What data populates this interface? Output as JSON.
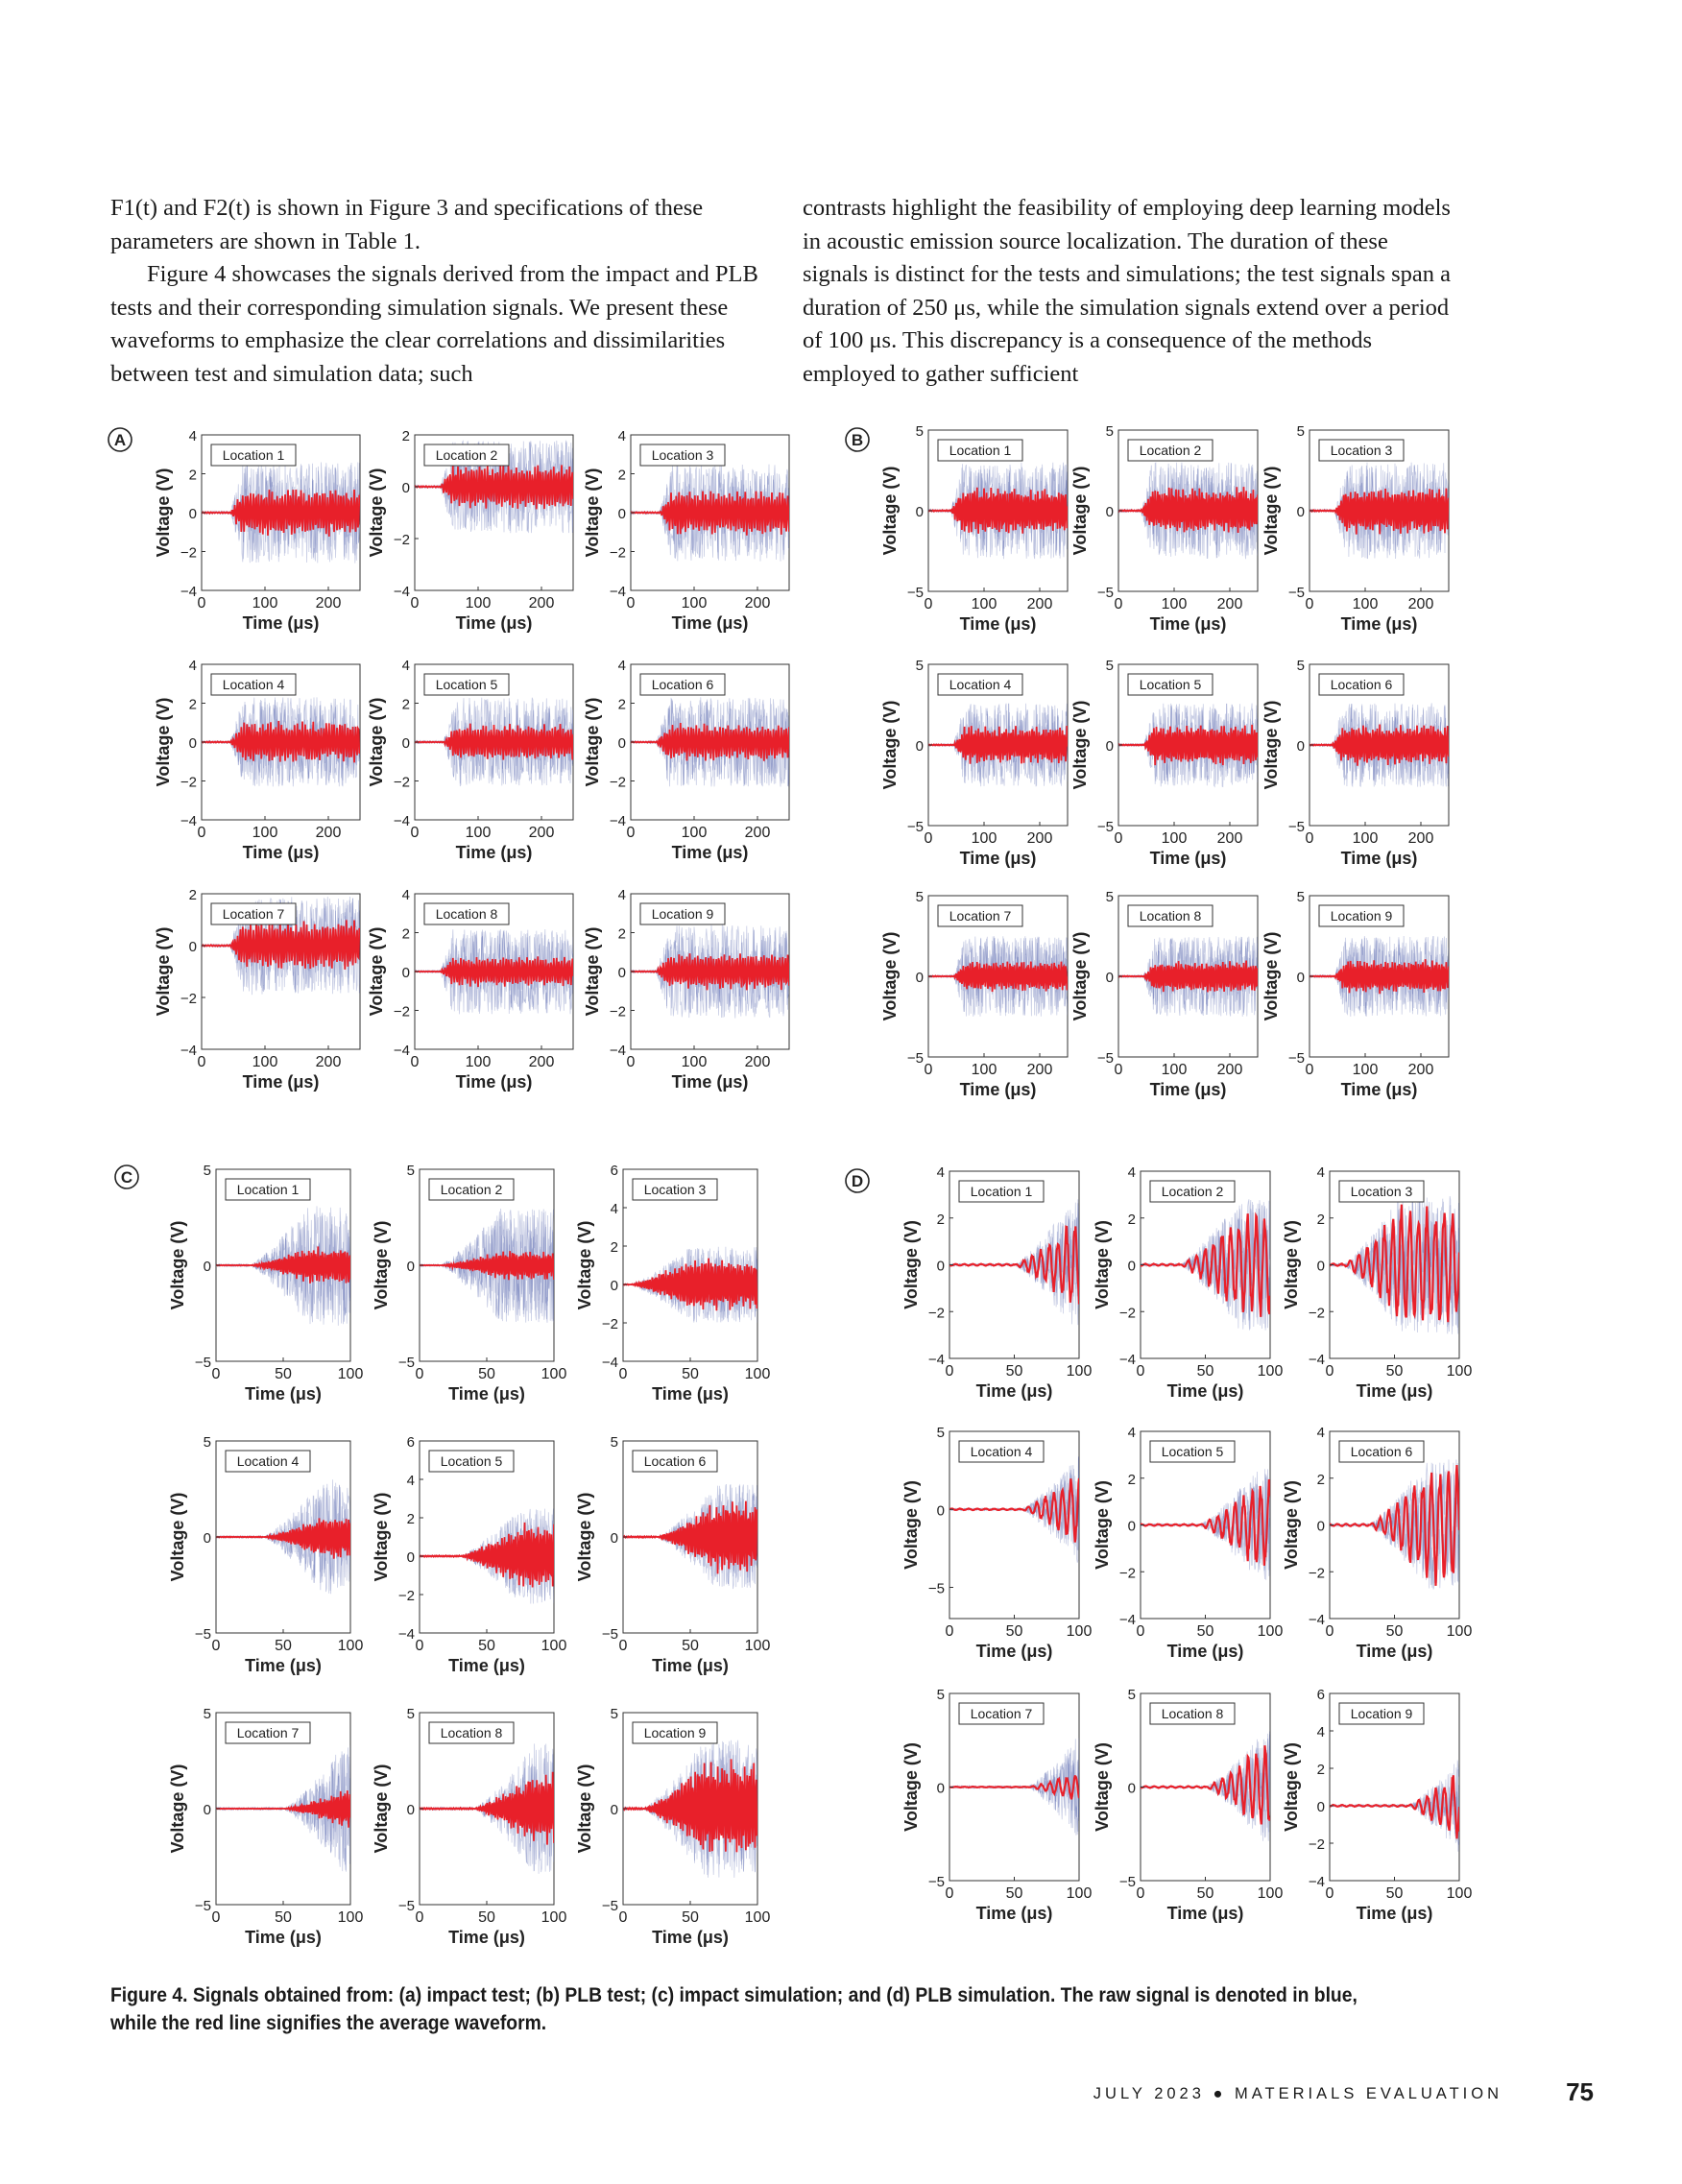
{
  "text_left": [
    "F1(t) and F2(t) is shown in Figure 3 and specifications of these parameters are shown in Table 1.",
    "Figure 4 showcases the signals derived from the impact and PLB tests and their corresponding simulation signals. We present these waveforms to emphasize the clear correlations and dissimilarities between test and simulation data; such"
  ],
  "text_right": [
    "contrasts highlight the feasibility of employing deep learning models in acoustic emission source localization. The duration of these signals is distinct for the tests and simulations; the test signals span a duration of 250 μs, while the simulation signals extend over a period of 100 μs. This discrepancy is a consequence of the methods employed to gather sufficient"
  ],
  "colors": {
    "raw": "#3e4fa0",
    "average": "#e8202a",
    "axis": "#333333"
  },
  "chart_data": [
    {
      "panel": "A",
      "type": "line",
      "series_names": [
        "raw",
        "average"
      ],
      "xlabel": "Time (μs)",
      "ylabel": "Voltage (V)",
      "xlim": [
        0,
        250
      ],
      "xticks": [
        0,
        100,
        200
      ],
      "subplots": [
        {
          "title": "Location 1",
          "ylim": [
            -4,
            4
          ],
          "yticks": [
            -4,
            -2,
            0,
            2,
            4
          ],
          "onset": 45,
          "amp_avg": 1.3,
          "amp_raw": 2.6,
          "seed": 11
        },
        {
          "title": "Location 2",
          "ylim": [
            -4,
            2
          ],
          "yticks": [
            -4,
            -2,
            0,
            2
          ],
          "onset": 40,
          "amp_avg": 0.9,
          "amp_raw": 1.8,
          "seed": 12
        },
        {
          "title": "Location 3",
          "ylim": [
            -4,
            4
          ],
          "yticks": [
            -4,
            -2,
            0,
            2,
            4
          ],
          "onset": 45,
          "amp_avg": 1.2,
          "amp_raw": 2.5,
          "seed": 13
        },
        {
          "title": "Location 4",
          "ylim": [
            -4,
            4
          ],
          "yticks": [
            -4,
            -2,
            0,
            2,
            4
          ],
          "onset": 45,
          "amp_avg": 1.1,
          "amp_raw": 2.3,
          "seed": 14
        },
        {
          "title": "Location 5",
          "ylim": [
            -4,
            4
          ],
          "yticks": [
            -4,
            -2,
            0,
            2,
            4
          ],
          "onset": 45,
          "amp_avg": 1.0,
          "amp_raw": 2.3,
          "seed": 15
        },
        {
          "title": "Location 6",
          "ylim": [
            -4,
            4
          ],
          "yticks": [
            -4,
            -2,
            0,
            2,
            4
          ],
          "onset": 40,
          "amp_avg": 1.0,
          "amp_raw": 2.3,
          "seed": 16
        },
        {
          "title": "Location 7",
          "ylim": [
            -4,
            2
          ],
          "yticks": [
            -4,
            -2,
            0,
            2
          ],
          "onset": 45,
          "amp_avg": 1.0,
          "amp_raw": 1.9,
          "seed": 17
        },
        {
          "title": "Location 8",
          "ylim": [
            -4,
            4
          ],
          "yticks": [
            -4,
            -2,
            0,
            2,
            4
          ],
          "onset": 40,
          "amp_avg": 0.8,
          "amp_raw": 2.2,
          "seed": 18
        },
        {
          "title": "Location 9",
          "ylim": [
            -4,
            4
          ],
          "yticks": [
            -4,
            -2,
            0,
            2,
            4
          ],
          "onset": 40,
          "amp_avg": 1.0,
          "amp_raw": 2.4,
          "seed": 19
        }
      ]
    },
    {
      "panel": "B",
      "type": "line",
      "series_names": [
        "raw",
        "average"
      ],
      "xlabel": "Time (μs)",
      "ylabel": "Voltage (V)",
      "xlim": [
        0,
        250
      ],
      "xticks": [
        0,
        100,
        200
      ],
      "subplots": [
        {
          "title": "Location 1",
          "ylim": [
            -5,
            5
          ],
          "yticks": [
            -5,
            0,
            5
          ],
          "onset": 40,
          "amp_avg": 1.5,
          "amp_raw": 3.0,
          "seed": 21
        },
        {
          "title": "Location 2",
          "ylim": [
            -5,
            5
          ],
          "yticks": [
            -5,
            0,
            5
          ],
          "onset": 40,
          "amp_avg": 1.5,
          "amp_raw": 3.0,
          "seed": 22
        },
        {
          "title": "Location 3",
          "ylim": [
            -5,
            5
          ],
          "yticks": [
            -5,
            0,
            5
          ],
          "onset": 45,
          "amp_avg": 1.5,
          "amp_raw": 3.0,
          "seed": 23
        },
        {
          "title": "Location 4",
          "ylim": [
            -5,
            5
          ],
          "yticks": [
            -5,
            0,
            5
          ],
          "onset": 45,
          "amp_avg": 1.2,
          "amp_raw": 2.6,
          "seed": 24
        },
        {
          "title": "Location 5",
          "ylim": [
            -5,
            5
          ],
          "yticks": [
            -5,
            0,
            5
          ],
          "onset": 45,
          "amp_avg": 1.3,
          "amp_raw": 2.6,
          "seed": 25
        },
        {
          "title": "Location 6",
          "ylim": [
            -5,
            5
          ],
          "yticks": [
            -5,
            0,
            5
          ],
          "onset": 40,
          "amp_avg": 1.3,
          "amp_raw": 2.6,
          "seed": 26
        },
        {
          "title": "Location 7",
          "ylim": [
            -5,
            5
          ],
          "yticks": [
            -5,
            0,
            5
          ],
          "onset": 45,
          "amp_avg": 1.0,
          "amp_raw": 2.5,
          "seed": 27
        },
        {
          "title": "Location 8",
          "ylim": [
            -5,
            5
          ],
          "yticks": [
            -5,
            0,
            5
          ],
          "onset": 45,
          "amp_avg": 1.0,
          "amp_raw": 2.5,
          "seed": 28
        },
        {
          "title": "Location 9",
          "ylim": [
            -5,
            5
          ],
          "yticks": [
            -5,
            0,
            5
          ],
          "onset": 45,
          "amp_avg": 1.1,
          "amp_raw": 2.5,
          "seed": 29
        }
      ]
    },
    {
      "panel": "C",
      "type": "line",
      "series_names": [
        "raw",
        "average"
      ],
      "xlabel": "Time (μs)",
      "ylabel": "Voltage (V)",
      "xlim": [
        0,
        100
      ],
      "xticks": [
        0,
        50,
        100
      ],
      "subplots": [
        {
          "title": "Location 1",
          "ylim": [
            -5,
            5
          ],
          "yticks": [
            -5,
            0,
            5
          ],
          "onset": 25,
          "amp_avg": 1.0,
          "amp_raw": 3.2,
          "seed": 31
        },
        {
          "title": "Location 2",
          "ylim": [
            -5,
            5
          ],
          "yticks": [
            -5,
            0,
            5
          ],
          "onset": 15,
          "amp_avg": 0.8,
          "amp_raw": 3.0,
          "seed": 32
        },
        {
          "title": "Location 3",
          "ylim": [
            -4,
            6
          ],
          "yticks": [
            -4,
            -2,
            0,
            2,
            4,
            6
          ],
          "onset": 5,
          "amp_avg": 1.4,
          "amp_raw": 2.0,
          "seed": 33
        },
        {
          "title": "Location 4",
          "ylim": [
            -5,
            5
          ],
          "yticks": [
            -5,
            0,
            5
          ],
          "onset": 35,
          "amp_avg": 1.2,
          "amp_raw": 3.0,
          "seed": 34
        },
        {
          "title": "Location 5",
          "ylim": [
            -4,
            6
          ],
          "yticks": [
            -4,
            -2,
            0,
            2,
            4,
            6
          ],
          "onset": 30,
          "amp_avg": 1.8,
          "amp_raw": 2.5,
          "seed": 35
        },
        {
          "title": "Location 6",
          "ylim": [
            -5,
            5
          ],
          "yticks": [
            -5,
            0,
            5
          ],
          "onset": 25,
          "amp_avg": 2.0,
          "amp_raw": 2.8,
          "seed": 36
        },
        {
          "title": "Location 7",
          "ylim": [
            -5,
            5
          ],
          "yticks": [
            -5,
            0,
            5
          ],
          "onset": 50,
          "amp_avg": 1.0,
          "amp_raw": 3.4,
          "seed": 37
        },
        {
          "title": "Location 8",
          "ylim": [
            -5,
            5
          ],
          "yticks": [
            -5,
            0,
            5
          ],
          "onset": 40,
          "amp_avg": 2.0,
          "amp_raw": 3.4,
          "seed": 38
        },
        {
          "title": "Location 9",
          "ylim": [
            -5,
            5
          ],
          "yticks": [
            -5,
            0,
            5
          ],
          "onset": 15,
          "amp_avg": 2.6,
          "amp_raw": 3.6,
          "seed": 39
        }
      ]
    },
    {
      "panel": "D",
      "type": "line",
      "series_names": [
        "raw",
        "average"
      ],
      "xlabel": "Time (μs)",
      "ylabel": "Voltage (V)",
      "xlim": [
        0,
        100
      ],
      "xticks": [
        0,
        50,
        100
      ],
      "subplots": [
        {
          "title": "Location 1",
          "ylim": [
            -4,
            4
          ],
          "yticks": [
            -4,
            -2,
            0,
            2,
            4
          ],
          "onset": 50,
          "amp_avg": 2.0,
          "amp_raw": 2.8,
          "seed": 41
        },
        {
          "title": "Location 2",
          "ylim": [
            -4,
            4
          ],
          "yticks": [
            -4,
            -2,
            0,
            2,
            4
          ],
          "onset": 30,
          "amp_avg": 2.3,
          "amp_raw": 2.8,
          "seed": 42
        },
        {
          "title": "Location 3",
          "ylim": [
            -4,
            4
          ],
          "yticks": [
            -4,
            -2,
            0,
            2,
            4
          ],
          "onset": 10,
          "amp_avg": 2.6,
          "amp_raw": 3.0,
          "seed": 43
        },
        {
          "title": "Location 4",
          "ylim": [
            -7,
            5
          ],
          "yticks": [
            -5,
            0,
            5
          ],
          "onset": 55,
          "amp_avg": 2.6,
          "amp_raw": 3.6,
          "seed": 44
        },
        {
          "title": "Location 5",
          "ylim": [
            -4,
            4
          ],
          "yticks": [
            -4,
            -2,
            0,
            2,
            4
          ],
          "onset": 45,
          "amp_avg": 2.0,
          "amp_raw": 2.4,
          "seed": 45
        },
        {
          "title": "Location 6",
          "ylim": [
            -4,
            4
          ],
          "yticks": [
            -4,
            -2,
            0,
            2,
            4
          ],
          "onset": 30,
          "amp_avg": 2.6,
          "amp_raw": 2.8,
          "seed": 46
        },
        {
          "title": "Location 7",
          "ylim": [
            -5,
            5
          ],
          "yticks": [
            -5,
            0,
            5
          ],
          "onset": 60,
          "amp_avg": 1.0,
          "amp_raw": 3.4,
          "seed": 47
        },
        {
          "title": "Location 8",
          "ylim": [
            -5,
            5
          ],
          "yticks": [
            -5,
            0,
            5
          ],
          "onset": 50,
          "amp_avg": 2.5,
          "amp_raw": 3.0,
          "seed": 48
        },
        {
          "title": "Location 9",
          "ylim": [
            -4,
            6
          ],
          "yticks": [
            -4,
            -2,
            0,
            2,
            4,
            6
          ],
          "onset": 60,
          "amp_avg": 2.4,
          "amp_raw": 3.0,
          "seed": 49
        }
      ]
    }
  ],
  "caption": "Figure 4. Signals obtained from: (a) impact test; (b) PLB test; (c) impact simulation; and (d) PLB simulation. The raw signal is denoted in blue, while the red line signifies the average waveform.",
  "footer": {
    "journal": "JULY 2023 ● MATERIALS EVALUATION",
    "page": "75"
  }
}
